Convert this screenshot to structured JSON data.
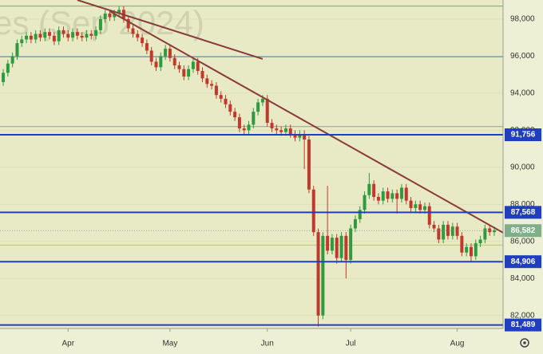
{
  "chart_data": {
    "type": "candlestick",
    "watermark": "es (Sep 2024)",
    "up_color": "#2e9b3e",
    "down_color": "#c0392b",
    "ylim": [
      81300,
      99030
    ],
    "yticks": [
      {
        "value": 82000,
        "label": "82,000"
      },
      {
        "value": 84000,
        "label": "84,000"
      },
      {
        "value": 86000,
        "label": "86,000"
      },
      {
        "value": 88000,
        "label": "88,000"
      },
      {
        "value": 90000,
        "label": "90,000"
      },
      {
        "value": 92000,
        "label": "92,000"
      },
      {
        "value": 94000,
        "label": "94,000"
      },
      {
        "value": 96000,
        "label": "96,000"
      },
      {
        "value": 98000,
        "label": "98,000"
      }
    ],
    "xlim": [
      -0.7,
      107.9
    ],
    "xticks": [
      {
        "value": 14,
        "label": "Apr"
      },
      {
        "value": 36,
        "label": "May"
      },
      {
        "value": 57,
        "label": "Jun"
      },
      {
        "value": 75,
        "label": "Jul"
      },
      {
        "value": 98,
        "label": "Aug"
      }
    ],
    "levels": [
      {
        "value": 91756,
        "label": "91,756",
        "color": "#1f3fbf"
      },
      {
        "value": 87568,
        "label": "87,568",
        "color": "#1f3fbf"
      },
      {
        "value": 84906,
        "label": "84,906",
        "color": "#1f3fbf"
      },
      {
        "value": 81489,
        "label": "81,489",
        "color": "#1f3fbf"
      }
    ],
    "last_price": {
      "value": 86582,
      "label": "86,582",
      "color": "#7fae8a"
    },
    "guides": [
      {
        "value": 98700,
        "color": "#5cb85c"
      },
      {
        "value": 95970,
        "color": "#3f7fbf"
      },
      {
        "value": 92200,
        "color": "#999999"
      },
      {
        "value": 85800,
        "color": "#b5d334"
      }
    ],
    "trendlines": [
      {
        "x": [
          16,
          56
        ],
        "y": [
          99030,
          95850
        ],
        "color": "#8b3a3a"
      },
      {
        "x": [
          23,
          107.9
        ],
        "y": [
          98430,
          86470
        ],
        "color": "#8b3a3a"
      }
    ],
    "ohlc": [
      [
        94600,
        95300,
        94400,
        95100
      ],
      [
        95100,
        95800,
        94900,
        95600
      ],
      [
        95600,
        96200,
        95400,
        96000
      ],
      [
        96000,
        96900,
        95800,
        96700
      ],
      [
        96700,
        97100,
        96500,
        96900
      ],
      [
        96900,
        97300,
        96700,
        97100
      ],
      [
        97100,
        97300,
        96700,
        96900
      ],
      [
        96900,
        97400,
        96700,
        97200
      ],
      [
        97200,
        97400,
        96800,
        97000
      ],
      [
        97000,
        97500,
        96800,
        97300
      ],
      [
        97300,
        97500,
        96900,
        97100
      ],
      [
        97100,
        97300,
        96600,
        96800
      ],
      [
        96800,
        97600,
        96600,
        97400
      ],
      [
        97400,
        97600,
        97000,
        97200
      ],
      [
        97200,
        97400,
        96800,
        97000
      ],
      [
        97000,
        97500,
        96800,
        97300
      ],
      [
        97300,
        97500,
        96900,
        97100
      ],
      [
        97100,
        97300,
        96800,
        97000
      ],
      [
        97000,
        97400,
        96800,
        97200
      ],
      [
        97200,
        97400,
        96900,
        97100
      ],
      [
        97100,
        97600,
        96900,
        97400
      ],
      [
        97400,
        98200,
        97200,
        98000
      ],
      [
        98000,
        98500,
        97800,
        98300
      ],
      [
        98300,
        98500,
        97900,
        98100
      ],
      [
        98100,
        98500,
        97900,
        98300
      ],
      [
        98300,
        98700,
        98100,
        98500
      ],
      [
        98500,
        98700,
        97800,
        98000
      ],
      [
        98000,
        98200,
        97300,
        97500
      ],
      [
        97500,
        97700,
        97000,
        97200
      ],
      [
        97200,
        97400,
        96800,
        97000
      ],
      [
        97000,
        97200,
        96500,
        96700
      ],
      [
        96700,
        96900,
        96100,
        96300
      ],
      [
        96300,
        96500,
        95500,
        95700
      ],
      [
        95700,
        95900,
        95200,
        95400
      ],
      [
        95400,
        96200,
        95200,
        96000
      ],
      [
        96000,
        96600,
        95800,
        96400
      ],
      [
        96400,
        96600,
        95700,
        95900
      ],
      [
        95900,
        96100,
        95300,
        95500
      ],
      [
        95500,
        95700,
        95100,
        95300
      ],
      [
        95300,
        95500,
        94700,
        94900
      ],
      [
        94900,
        95500,
        94700,
        95300
      ],
      [
        95300,
        95900,
        95100,
        95700
      ],
      [
        95700,
        95900,
        95000,
        95200
      ],
      [
        95200,
        95400,
        94600,
        94800
      ],
      [
        94800,
        95000,
        94300,
        94500
      ],
      [
        94500,
        94700,
        94200,
        94400
      ],
      [
        94400,
        94600,
        93700,
        93900
      ],
      [
        93900,
        94100,
        93500,
        93700
      ],
      [
        93700,
        93900,
        93200,
        93400
      ],
      [
        93400,
        93600,
        92800,
        93000
      ],
      [
        93000,
        93200,
        92500,
        92700
      ],
      [
        92700,
        92900,
        91900,
        92100
      ],
      [
        92100,
        92300,
        91800,
        92000
      ],
      [
        92000,
        92500,
        91800,
        92300
      ],
      [
        92300,
        93200,
        92100,
        93000
      ],
      [
        93000,
        93700,
        92800,
        93500
      ],
      [
        93500,
        93900,
        93300,
        93700
      ],
      [
        93700,
        93900,
        92200,
        92400
      ],
      [
        92400,
        92600,
        91900,
        92100
      ],
      [
        92100,
        92300,
        91800,
        92000
      ],
      [
        92000,
        92200,
        91700,
        91900
      ],
      [
        91900,
        92300,
        91700,
        92100
      ],
      [
        92100,
        92300,
        91600,
        91800
      ],
      [
        91800,
        92000,
        91400,
        91600
      ],
      [
        91600,
        92000,
        91400,
        91800
      ],
      [
        91800,
        92000,
        89900,
        91500
      ],
      [
        91500,
        91700,
        88600,
        88800
      ],
      [
        88800,
        89000,
        86300,
        86500
      ],
      [
        86500,
        86700,
        81400,
        82000
      ],
      [
        82000,
        86500,
        81800,
        86300
      ],
      [
        86300,
        89000,
        85300,
        85500
      ],
      [
        85500,
        86400,
        85300,
        86200
      ],
      [
        86200,
        86400,
        84800,
        85100
      ],
      [
        85100,
        86500,
        84900,
        86300
      ],
      [
        86300,
        86500,
        84000,
        85000
      ],
      [
        85000,
        86900,
        84800,
        86700
      ],
      [
        86700,
        87400,
        86500,
        87200
      ],
      [
        87200,
        87900,
        87000,
        87700
      ],
      [
        87700,
        88700,
        87500,
        88500
      ],
      [
        88500,
        89700,
        88300,
        89100
      ],
      [
        89100,
        89300,
        88200,
        88400
      ],
      [
        88400,
        88600,
        88000,
        88200
      ],
      [
        88200,
        88900,
        88000,
        88700
      ],
      [
        88700,
        88900,
        88100,
        88300
      ],
      [
        88300,
        88800,
        88100,
        88600
      ],
      [
        88600,
        88800,
        87500,
        88300
      ],
      [
        88300,
        89100,
        88100,
        88900
      ],
      [
        88900,
        89100,
        88000,
        88200
      ],
      [
        88200,
        88400,
        87600,
        87800
      ],
      [
        87800,
        88200,
        87600,
        88000
      ],
      [
        88000,
        88200,
        87500,
        87700
      ],
      [
        87700,
        88100,
        87500,
        87900
      ],
      [
        87900,
        88100,
        86700,
        86900
      ],
      [
        86900,
        87100,
        86500,
        86700
      ],
      [
        86700,
        86900,
        85900,
        86100
      ],
      [
        86100,
        87100,
        85900,
        86900
      ],
      [
        86900,
        87100,
        86100,
        86300
      ],
      [
        86300,
        87000,
        86100,
        86800
      ],
      [
        86800,
        87000,
        86100,
        86300
      ],
      [
        86300,
        86500,
        85200,
        85400
      ],
      [
        85400,
        85900,
        85200,
        85700
      ],
      [
        85700,
        85900,
        84900,
        85200
      ],
      [
        85200,
        86100,
        85000,
        85900
      ],
      [
        85900,
        86300,
        85700,
        86100
      ],
      [
        86100,
        86900,
        85900,
        86700
      ],
      [
        86700,
        86900,
        86300,
        86500
      ],
      [
        86500,
        86800,
        86300,
        86600
      ]
    ]
  }
}
